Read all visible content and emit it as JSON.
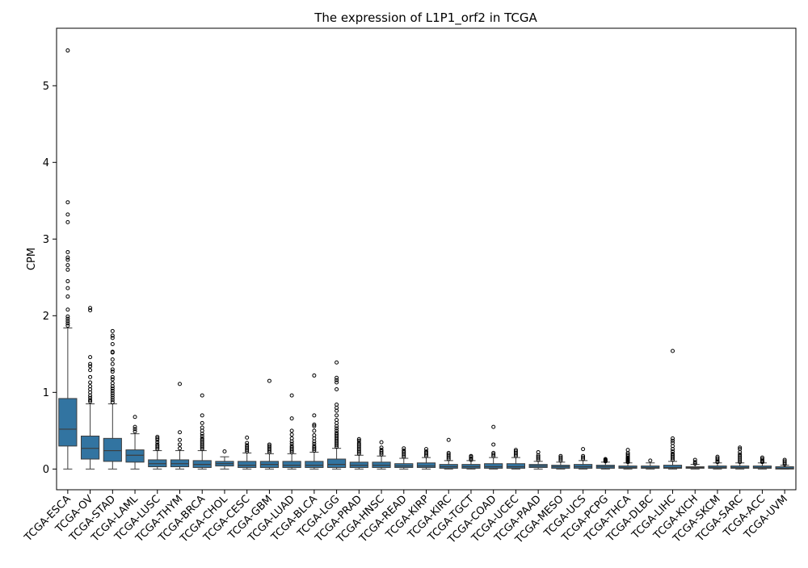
{
  "chart_data": {
    "type": "box",
    "title": "The expression of L1P1_orf2 in TCGA",
    "xlabel": "",
    "ylabel": "CPM",
    "ylim": [
      -0.27,
      5.75
    ],
    "yticks": [
      0,
      1,
      2,
      3,
      4,
      5
    ],
    "grid": false,
    "color": "#3274a1",
    "categories": [
      "TCGA-ESCA",
      "TCGA-OV",
      "TCGA-STAD",
      "TCGA-LAML",
      "TCGA-LUSC",
      "TCGA-THYM",
      "TCGA-BRCA",
      "TCGA-CHOL",
      "TCGA-CESC",
      "TCGA-GBM",
      "TCGA-LUAD",
      "TCGA-BLCA",
      "TCGA-LGG",
      "TCGA-PRAD",
      "TCGA-HNSC",
      "TCGA-READ",
      "TCGA-KIRP",
      "TCGA-KIRC",
      "TCGA-TGCT",
      "TCGA-COAD",
      "TCGA-UCEC",
      "TCGA-PAAD",
      "TCGA-MESO",
      "TCGA-UCS",
      "TCGA-PCPG",
      "TCGA-THCA",
      "TCGA-DLBC",
      "TCGA-LIHC",
      "TCGA-KICH",
      "TCGA-SKCM",
      "TCGA-SARC",
      "TCGA-ACC",
      "TCGA-UVM"
    ],
    "boxes": [
      {
        "min": 0,
        "q1": 0.3,
        "median": 0.52,
        "q3": 0.92,
        "max": 1.84,
        "outliers": [
          1.87,
          1.9,
          1.93,
          1.96,
          1.99,
          2.08,
          2.25,
          2.36,
          2.45,
          2.6,
          2.66,
          2.73,
          2.76,
          2.83,
          3.22,
          3.32,
          3.48,
          5.46
        ]
      },
      {
        "min": 0,
        "q1": 0.13,
        "median": 0.27,
        "q3": 0.43,
        "max": 0.85,
        "outliers": [
          0.88,
          0.9,
          0.93,
          0.96,
          1.0,
          1.04,
          1.08,
          1.13,
          1.2,
          1.29,
          1.34,
          1.37,
          1.46,
          2.07,
          2.1
        ]
      },
      {
        "min": 0,
        "q1": 0.1,
        "median": 0.24,
        "q3": 0.4,
        "max": 0.85,
        "outliers": [
          0.87,
          0.9,
          0.93,
          0.96,
          0.99,
          1.02,
          1.05,
          1.08,
          1.12,
          1.17,
          1.2,
          1.27,
          1.3,
          1.37,
          1.43,
          1.52,
          1.53,
          1.63,
          1.71,
          1.74,
          1.8
        ]
      },
      {
        "min": 0,
        "q1": 0.09,
        "median": 0.18,
        "q3": 0.25,
        "max": 0.46,
        "outliers": [
          0.49,
          0.52,
          0.55,
          0.68
        ]
      },
      {
        "min": 0,
        "q1": 0.03,
        "median": 0.07,
        "q3": 0.12,
        "max": 0.24,
        "outliers": [
          0.26,
          0.28,
          0.3,
          0.32,
          0.35,
          0.38,
          0.4,
          0.42
        ]
      },
      {
        "min": 0,
        "q1": 0.03,
        "median": 0.07,
        "q3": 0.12,
        "max": 0.24,
        "outliers": [
          0.27,
          0.32,
          0.38,
          0.48,
          1.11
        ]
      },
      {
        "min": 0,
        "q1": 0.02,
        "median": 0.06,
        "q3": 0.11,
        "max": 0.24,
        "outliers": [
          0.26,
          0.28,
          0.3,
          0.32,
          0.34,
          0.36,
          0.38,
          0.4,
          0.43,
          0.46,
          0.5,
          0.54,
          0.6,
          0.7,
          0.96
        ]
      },
      {
        "min": 0,
        "q1": 0.04,
        "median": 0.07,
        "q3": 0.1,
        "max": 0.16,
        "outliers": [
          0.23
        ]
      },
      {
        "min": 0,
        "q1": 0.02,
        "median": 0.05,
        "q3": 0.1,
        "max": 0.21,
        "outliers": [
          0.23,
          0.25,
          0.27,
          0.29,
          0.31,
          0.34,
          0.41
        ]
      },
      {
        "min": 0,
        "q1": 0.02,
        "median": 0.06,
        "q3": 0.1,
        "max": 0.2,
        "outliers": [
          0.22,
          0.24,
          0.26,
          0.28,
          0.3,
          0.32,
          1.15
        ]
      },
      {
        "min": 0,
        "q1": 0.02,
        "median": 0.05,
        "q3": 0.1,
        "max": 0.2,
        "outliers": [
          0.22,
          0.24,
          0.26,
          0.28,
          0.3,
          0.33,
          0.36,
          0.4,
          0.45,
          0.5,
          0.66,
          0.96
        ]
      },
      {
        "min": 0,
        "q1": 0.02,
        "median": 0.05,
        "q3": 0.1,
        "max": 0.22,
        "outliers": [
          0.24,
          0.26,
          0.28,
          0.3,
          0.33,
          0.36,
          0.4,
          0.44,
          0.5,
          0.56,
          0.58,
          0.7,
          1.22
        ]
      },
      {
        "min": 0,
        "q1": 0.02,
        "median": 0.06,
        "q3": 0.13,
        "max": 0.27,
        "outliers": [
          0.29,
          0.31,
          0.33,
          0.35,
          0.37,
          0.39,
          0.41,
          0.43,
          0.45,
          0.47,
          0.5,
          0.53,
          0.56,
          0.6,
          0.64,
          0.7,
          0.76,
          0.8,
          0.84,
          1.04,
          1.13,
          1.16,
          1.19,
          1.39
        ]
      },
      {
        "min": 0,
        "q1": 0.02,
        "median": 0.05,
        "q3": 0.09,
        "max": 0.18,
        "outliers": [
          0.2,
          0.22,
          0.24,
          0.26,
          0.28,
          0.3,
          0.32,
          0.34,
          0.37,
          0.39
        ]
      },
      {
        "min": 0,
        "q1": 0.02,
        "median": 0.05,
        "q3": 0.09,
        "max": 0.17,
        "outliers": [
          0.19,
          0.21,
          0.23,
          0.25,
          0.28,
          0.35
        ]
      },
      {
        "min": 0,
        "q1": 0.02,
        "median": 0.04,
        "q3": 0.07,
        "max": 0.14,
        "outliers": [
          0.16,
          0.18,
          0.2,
          0.22,
          0.24,
          0.27
        ]
      },
      {
        "min": 0,
        "q1": 0.02,
        "median": 0.04,
        "q3": 0.08,
        "max": 0.15,
        "outliers": [
          0.17,
          0.19,
          0.21,
          0.23,
          0.26
        ]
      },
      {
        "min": 0,
        "q1": 0.01,
        "median": 0.03,
        "q3": 0.06,
        "max": 0.11,
        "outliers": [
          0.13,
          0.15,
          0.17,
          0.19,
          0.21,
          0.38
        ]
      },
      {
        "min": 0,
        "q1": 0.01,
        "median": 0.03,
        "q3": 0.06,
        "max": 0.11,
        "outliers": [
          0.12,
          0.14,
          0.16,
          0.17
        ]
      },
      {
        "min": 0,
        "q1": 0.01,
        "median": 0.03,
        "q3": 0.07,
        "max": 0.15,
        "outliers": [
          0.17,
          0.19,
          0.21,
          0.32,
          0.55
        ]
      },
      {
        "min": 0,
        "q1": 0.01,
        "median": 0.03,
        "q3": 0.07,
        "max": 0.15,
        "outliers": [
          0.17,
          0.19,
          0.21,
          0.23,
          0.25
        ]
      },
      {
        "min": 0,
        "q1": 0.02,
        "median": 0.04,
        "q3": 0.06,
        "max": 0.1,
        "outliers": [
          0.12,
          0.14,
          0.16,
          0.18,
          0.22
        ]
      },
      {
        "min": 0,
        "q1": 0.01,
        "median": 0.03,
        "q3": 0.05,
        "max": 0.09,
        "outliers": [
          0.11,
          0.13,
          0.15,
          0.17
        ]
      },
      {
        "min": 0,
        "q1": 0.01,
        "median": 0.03,
        "q3": 0.06,
        "max": 0.11,
        "outliers": [
          0.13,
          0.15,
          0.17,
          0.26
        ]
      },
      {
        "min": 0,
        "q1": 0.01,
        "median": 0.03,
        "q3": 0.05,
        "max": 0.09,
        "outliers": [
          0.1,
          0.11,
          0.12,
          0.13
        ]
      },
      {
        "min": 0,
        "q1": 0.01,
        "median": 0.02,
        "q3": 0.04,
        "max": 0.08,
        "outliers": [
          0.09,
          0.1,
          0.11,
          0.12,
          0.13,
          0.14,
          0.15,
          0.17,
          0.19,
          0.21,
          0.25
        ]
      },
      {
        "min": 0,
        "q1": 0.01,
        "median": 0.02,
        "q3": 0.04,
        "max": 0.08,
        "outliers": [
          0.11
        ]
      },
      {
        "min": 0,
        "q1": 0.01,
        "median": 0.02,
        "q3": 0.05,
        "max": 0.1,
        "outliers": [
          0.12,
          0.14,
          0.16,
          0.18,
          0.2,
          0.23,
          0.26,
          0.3,
          0.34,
          0.37,
          0.4,
          1.54
        ]
      },
      {
        "min": 0,
        "q1": 0.01,
        "median": 0.02,
        "q3": 0.03,
        "max": 0.06,
        "outliers": [
          0.07,
          0.09,
          0.12
        ]
      },
      {
        "min": 0,
        "q1": 0.01,
        "median": 0.02,
        "q3": 0.04,
        "max": 0.08,
        "outliers": [
          0.09,
          0.1,
          0.12,
          0.14,
          0.16
        ]
      },
      {
        "min": 0,
        "q1": 0.01,
        "median": 0.02,
        "q3": 0.04,
        "max": 0.08,
        "outliers": [
          0.09,
          0.11,
          0.13,
          0.15,
          0.17,
          0.19,
          0.22,
          0.26,
          0.28
        ]
      },
      {
        "min": 0,
        "q1": 0.01,
        "median": 0.02,
        "q3": 0.04,
        "max": 0.08,
        "outliers": [
          0.09,
          0.1,
          0.11,
          0.13,
          0.15
        ]
      },
      {
        "min": 0,
        "q1": 0.0,
        "median": 0.01,
        "q3": 0.03,
        "max": 0.05,
        "outliers": [
          0.06,
          0.08,
          0.1,
          0.12
        ]
      }
    ]
  }
}
